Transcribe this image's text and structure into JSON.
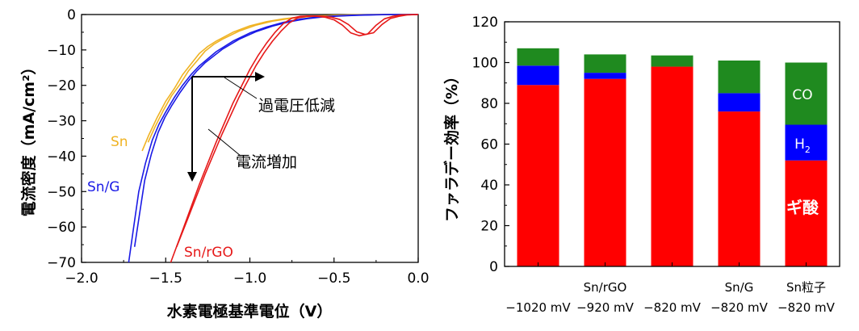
{
  "chart_data": [
    {
      "type": "line",
      "xlabel": "水素電極基準電位（V）",
      "ylabel": "電流密度（mA/cm²）",
      "xlim": [
        -2.0,
        0.0
      ],
      "ylim": [
        -70,
        0
      ],
      "xticks": [
        "−2.0",
        "−1.5",
        "−1.0",
        "−0.5",
        "0.0"
      ],
      "yticks": [
        "0",
        "−10",
        "−20",
        "−30",
        "−40",
        "−50",
        "−60",
        "−70"
      ],
      "grid": false,
      "series": [
        {
          "name": "Sn",
          "color": "#f0b323",
          "x": [
            -1.64,
            -1.6,
            -1.55,
            -1.5,
            -1.45,
            -1.4,
            -1.35,
            -1.3,
            -1.25,
            -1.2,
            -1.1,
            -1.0,
            -0.9,
            -0.8,
            -0.7,
            -0.6,
            -0.5,
            -0.4,
            -0.2,
            0.0
          ],
          "y": [
            -38.5,
            -34.0,
            -29.0,
            -24.5,
            -21.0,
            -17.0,
            -14.0,
            -11.0,
            -9.0,
            -7.5,
            -5.0,
            -3.2,
            -2.0,
            -1.2,
            -0.7,
            -0.4,
            -0.2,
            -0.1,
            0.0,
            0.0
          ]
        },
        {
          "name": "Sn/G",
          "color": "#1a1ae6",
          "x": [
            -1.72,
            -1.69,
            -1.66,
            -1.62,
            -1.58,
            -1.54,
            -1.5,
            -1.45,
            -1.4,
            -1.35,
            -1.3,
            -1.25,
            -1.2,
            -1.1,
            -1.0,
            -0.9,
            -0.8,
            -0.7,
            -0.6,
            -0.5,
            -0.4,
            -0.3,
            -0.2,
            0.0
          ],
          "y": [
            -70.0,
            -60.0,
            -50.0,
            -42.0,
            -35.5,
            -31.0,
            -27.5,
            -23.5,
            -20.0,
            -17.0,
            -14.5,
            -12.5,
            -10.5,
            -7.5,
            -5.2,
            -3.5,
            -2.2,
            -1.3,
            -0.7,
            -0.4,
            -0.2,
            -0.1,
            0.0,
            0.0
          ]
        },
        {
          "name": "Sn/rGO",
          "color": "#e61919",
          "x": [
            -1.47,
            -1.4,
            -1.3,
            -1.2,
            -1.1,
            -1.0,
            -0.95,
            -0.9,
            -0.85,
            -0.8,
            -0.75,
            -0.7,
            -0.65,
            -0.6,
            -0.55,
            -0.5,
            -0.45,
            -0.4,
            -0.35,
            -0.3,
            -0.25,
            -0.2,
            -0.15,
            -0.1,
            0.0
          ],
          "y": [
            -70.0,
            -61.0,
            -48.0,
            -36.0,
            -25.0,
            -15.5,
            -11.5,
            -8.0,
            -5.0,
            -2.5,
            -1.0,
            -0.5,
            -0.4,
            -0.5,
            -0.8,
            -1.5,
            -3.0,
            -5.2,
            -6.0,
            -5.5,
            -3.0,
            -1.2,
            -0.5,
            -0.1,
            0.0
          ]
        }
      ],
      "annotations": [
        "過電圧低減",
        "電流増加"
      ]
    },
    {
      "type": "bar",
      "stacked": true,
      "ylabel": "ファラデー効率（%）",
      "ylim": [
        0,
        120
      ],
      "yticks": [
        "0",
        "20",
        "40",
        "60",
        "80",
        "100",
        "120"
      ],
      "categories": [
        {
          "top": "",
          "bottom": "−1020 mV"
        },
        {
          "top": "Sn/rGO",
          "bottom": "−920 mV"
        },
        {
          "top": "",
          "bottom": "−820 mV"
        },
        {
          "top": "Sn/G",
          "bottom": "−820 mV"
        },
        {
          "top": "Sn粒子",
          "bottom": "−820 mV"
        }
      ],
      "series": [
        {
          "name": "ギ酸",
          "color": "#ff0000",
          "values": [
            89,
            92,
            98,
            76,
            52
          ]
        },
        {
          "name": "H₂",
          "color": "#0000ff",
          "values": [
            9.5,
            3,
            0,
            9,
            17.5
          ]
        },
        {
          "name": "CO",
          "color": "#1f8a1f",
          "values": [
            8.5,
            9,
            5.5,
            16,
            30.5
          ]
        }
      ],
      "series_labels": {
        "formic": "ギ酸",
        "h2_main": "H",
        "h2_sub": "2",
        "co": "CO"
      }
    }
  ]
}
